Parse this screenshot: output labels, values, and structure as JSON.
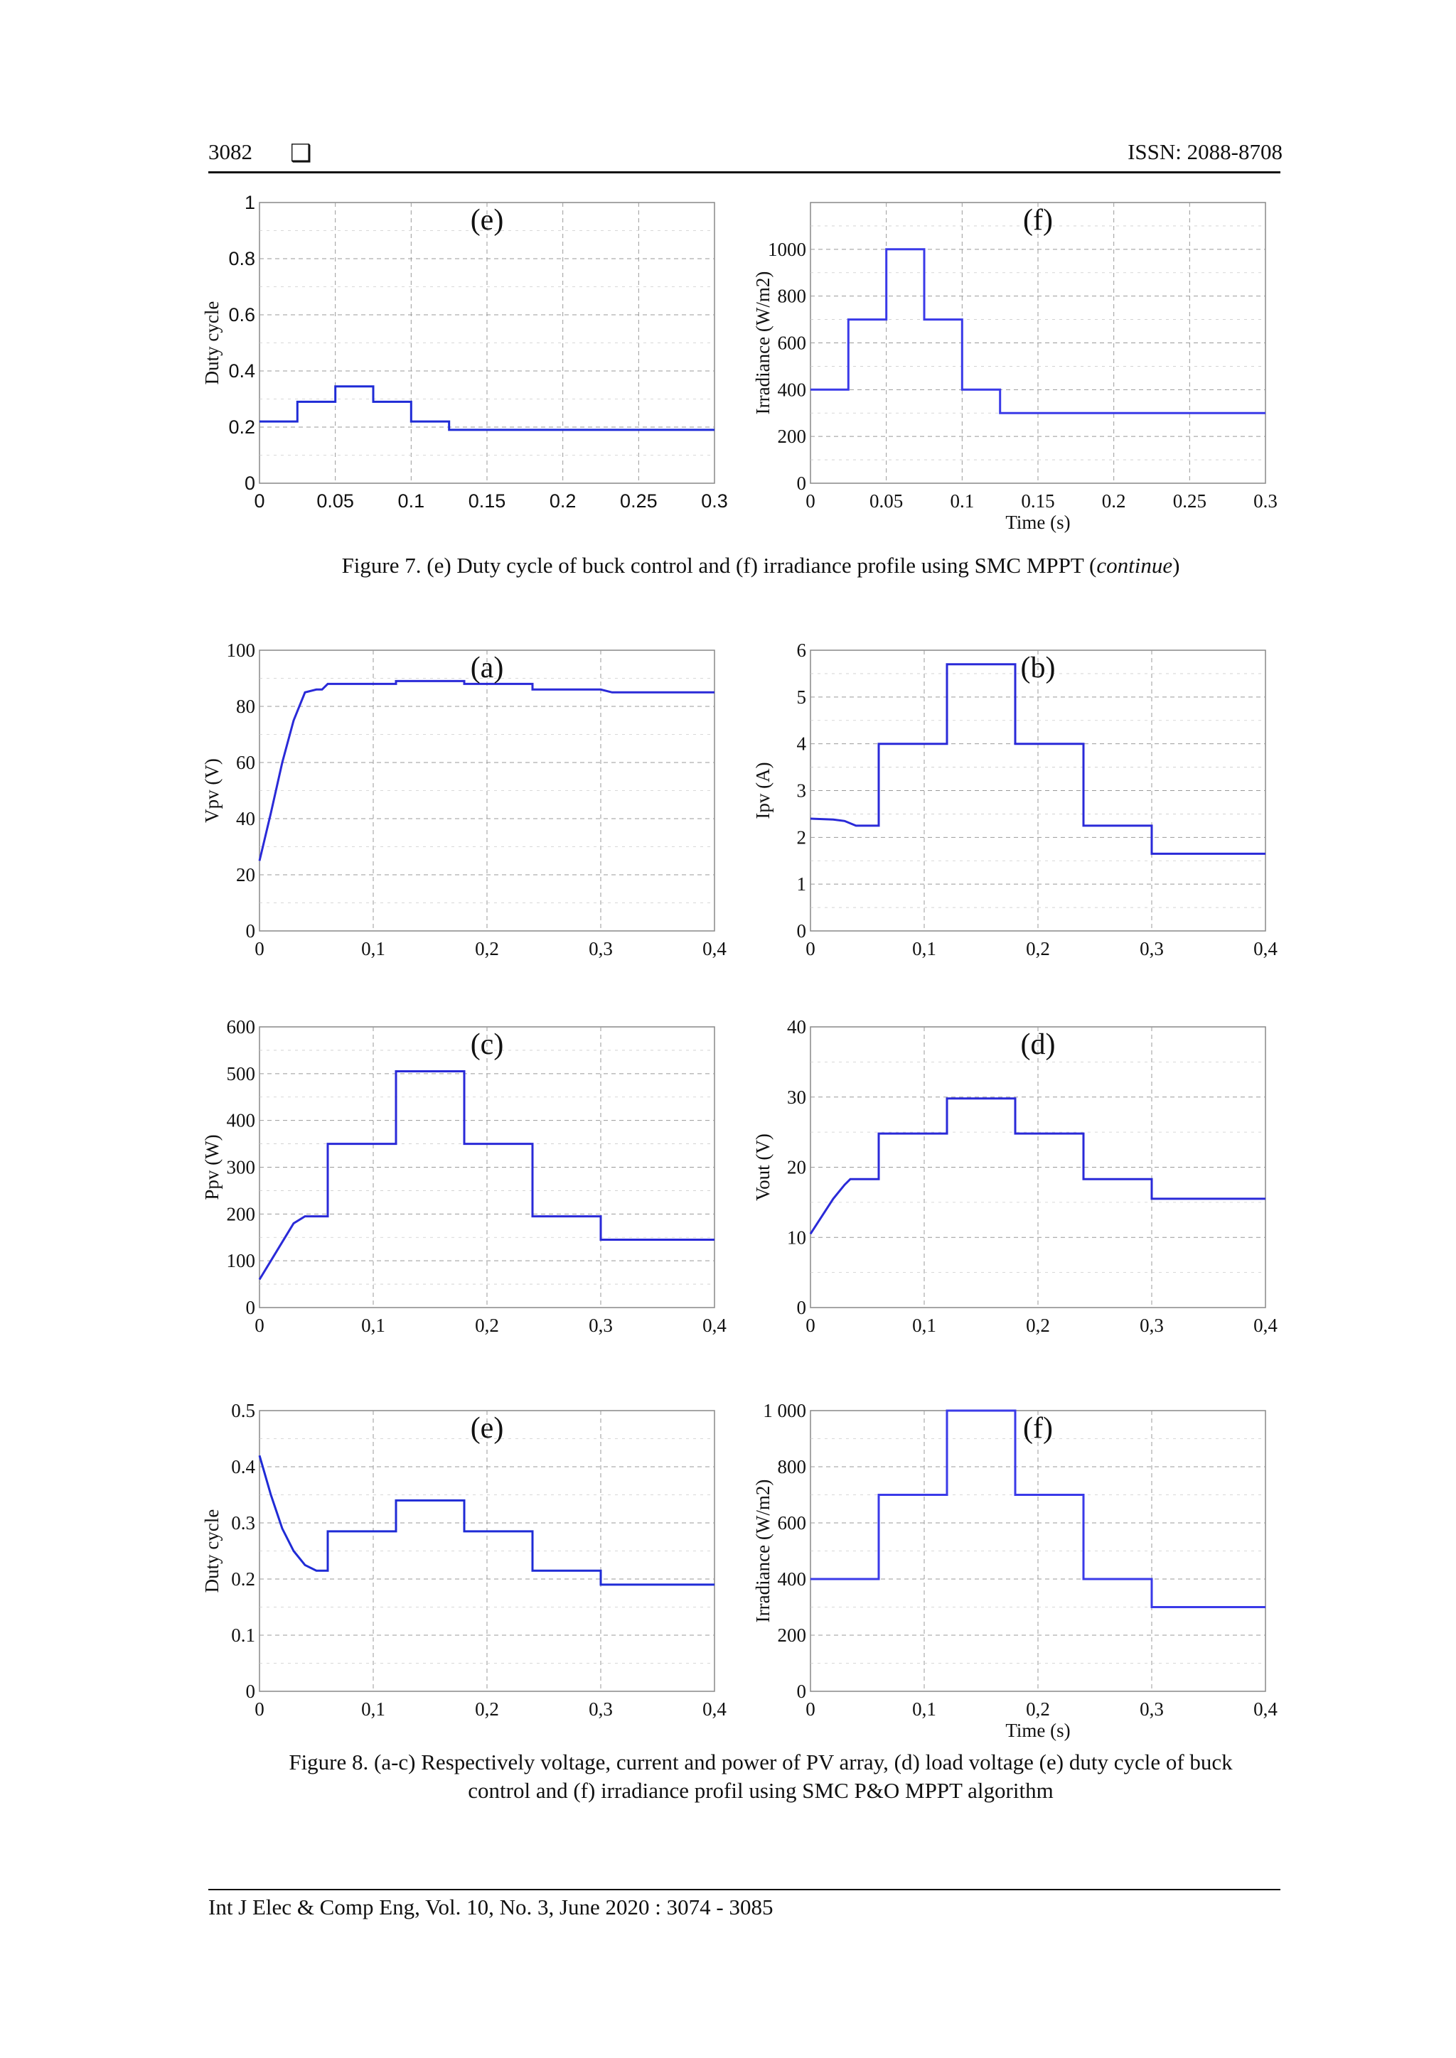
{
  "header": {
    "page_number": "3082",
    "icon": "square-bullet-icon",
    "issn": "ISSN: 2088-8708"
  },
  "captions": {
    "fig7": "Figure 7. (e) Duty cycle of buck control and (f) irradiance profile using SMC MPPT (",
    "fig7_italic": "continue",
    "fig7_end": ")",
    "fig8_line1": "Figure 8. (a-c) Respectively voltage, current and  power of PV array, (d) load voltage (e) duty cycle of buck",
    "fig8_line2": "control and (f) irradiance profil using SMC P&O MPPT algorithm"
  },
  "footer": {
    "text": "Int J Elec & Comp Eng, Vol. 10, No. 3, June 2020 :  3074 - 3085"
  },
  "chart_data": [
    {
      "id": "fig7e",
      "type": "line",
      "panel_label": "(e)",
      "title": "",
      "xlabel": "",
      "ylabel": "Duty cycle",
      "xlim": [
        0,
        0.3
      ],
      "ylim": [
        0,
        1
      ],
      "xticks": [
        "0",
        "0.05",
        "0.1",
        "0.15",
        "0.2",
        "0.25",
        "0.3"
      ],
      "yticks": [
        "0",
        "0.2",
        "0.4",
        "0.6",
        "0.8",
        "1"
      ],
      "series": [
        {
          "color": "#1f2bd6",
          "x": [
            0,
            0.025,
            0.025,
            0.05,
            0.05,
            0.075,
            0.075,
            0.1,
            0.1,
            0.125,
            0.125,
            0.3
          ],
          "y": [
            0.22,
            0.22,
            0.29,
            0.29,
            0.345,
            0.345,
            0.29,
            0.29,
            0.22,
            0.22,
            0.19,
            0.19
          ]
        }
      ]
    },
    {
      "id": "fig7f",
      "type": "line",
      "panel_label": "(f)",
      "title": "",
      "xlabel": "Time (s)",
      "ylabel": "Irradiance (W/m2)",
      "xlim": [
        0,
        0.3
      ],
      "ylim": [
        0,
        1200
      ],
      "xticks": [
        "0",
        "0.05",
        "0.1",
        "0.15",
        "0.2",
        "0.25",
        "0.3"
      ],
      "yticks": [
        "0",
        "200",
        "400",
        "600",
        "800",
        "1000",
        ""
      ],
      "series": [
        {
          "color": "#3a3ae8",
          "x": [
            0,
            0.025,
            0.025,
            0.05,
            0.05,
            0.075,
            0.075,
            0.1,
            0.1,
            0.125,
            0.125,
            0.3
          ],
          "y": [
            400,
            400,
            700,
            700,
            1000,
            1000,
            700,
            700,
            400,
            400,
            300,
            300
          ]
        }
      ]
    },
    {
      "id": "fig8a",
      "type": "line",
      "panel_label": "(a)",
      "title": "",
      "xlabel": "",
      "ylabel": "Vpv (V)",
      "xlim": [
        0,
        0.4
      ],
      "ylim": [
        0,
        100
      ],
      "xticks": [
        "0",
        "0,1",
        "0,2",
        "0,3",
        "0,4"
      ],
      "yticks": [
        "0",
        "20",
        "40",
        "60",
        "80",
        "100"
      ],
      "series": [
        {
          "color": "#2a2ad8",
          "x": [
            0,
            0.01,
            0.02,
            0.03,
            0.04,
            0.05,
            0.055,
            0.06,
            0.12,
            0.12,
            0.18,
            0.18,
            0.24,
            0.24,
            0.3,
            0.31,
            0.4
          ],
          "y": [
            25,
            42,
            60,
            75,
            85,
            86,
            86,
            88,
            88,
            89,
            89,
            88,
            88,
            86,
            86,
            85,
            85
          ]
        }
      ]
    },
    {
      "id": "fig8b",
      "type": "line",
      "panel_label": "(b)",
      "title": "",
      "xlabel": "",
      "ylabel": "Ipv (A)",
      "xlim": [
        0,
        0.4
      ],
      "ylim": [
        0,
        6
      ],
      "xticks": [
        "0",
        "0,1",
        "0,2",
        "0,3",
        "0,4"
      ],
      "yticks": [
        "0",
        "1",
        "2",
        "3",
        "4",
        "5",
        "6"
      ],
      "series": [
        {
          "color": "#2a2ad8",
          "x": [
            0,
            0.02,
            0.03,
            0.04,
            0.06,
            0.06,
            0.12,
            0.12,
            0.18,
            0.18,
            0.24,
            0.24,
            0.3,
            0.3,
            0.4
          ],
          "y": [
            2.4,
            2.38,
            2.35,
            2.25,
            2.25,
            4.0,
            4.0,
            5.7,
            5.7,
            4.0,
            4.0,
            2.25,
            2.25,
            1.65,
            1.65
          ]
        }
      ]
    },
    {
      "id": "fig8c",
      "type": "line",
      "panel_label": "(c)",
      "title": "",
      "xlabel": "",
      "ylabel": "Ppv (W)",
      "xlim": [
        0,
        0.4
      ],
      "ylim": [
        0,
        600
      ],
      "xticks": [
        "0",
        "0,1",
        "0,2",
        "0,3",
        "0,4"
      ],
      "yticks": [
        "0",
        "100",
        "200",
        "300",
        "400",
        "500",
        "600"
      ],
      "series": [
        {
          "color": "#2a2ad8",
          "x": [
            0,
            0.01,
            0.02,
            0.03,
            0.04,
            0.06,
            0.06,
            0.12,
            0.12,
            0.18,
            0.18,
            0.24,
            0.24,
            0.3,
            0.3,
            0.4
          ],
          "y": [
            60,
            100,
            140,
            180,
            195,
            195,
            350,
            350,
            505,
            505,
            350,
            350,
            195,
            195,
            145,
            145
          ]
        }
      ]
    },
    {
      "id": "fig8d",
      "type": "line",
      "panel_label": "(d)",
      "title": "",
      "xlabel": "",
      "ylabel": "Vout (V)",
      "xlim": [
        0,
        0.4
      ],
      "ylim": [
        0,
        40
      ],
      "xticks": [
        "0",
        "0,1",
        "0,2",
        "0,3",
        "0,4"
      ],
      "yticks": [
        "0",
        "10",
        "20",
        "30",
        "40"
      ],
      "series": [
        {
          "color": "#2a2ad8",
          "x": [
            0,
            0.01,
            0.02,
            0.03,
            0.035,
            0.06,
            0.06,
            0.12,
            0.12,
            0.18,
            0.18,
            0.24,
            0.24,
            0.3,
            0.3,
            0.4
          ],
          "y": [
            10.5,
            13,
            15.5,
            17.5,
            18.3,
            18.3,
            24.8,
            24.8,
            29.8,
            29.8,
            24.8,
            24.8,
            18.3,
            18.3,
            15.5,
            15.5
          ]
        }
      ]
    },
    {
      "id": "fig8e",
      "type": "line",
      "panel_label": "(e)",
      "title": "",
      "xlabel": "",
      "ylabel": "Duty cycle",
      "xlim": [
        0,
        0.4
      ],
      "ylim": [
        0,
        0.5
      ],
      "xticks": [
        "0",
        "0,1",
        "0,2",
        "0,3",
        "0,4"
      ],
      "yticks": [
        "0",
        "0.1",
        "0.2",
        "0.3",
        "0.4",
        "0.5"
      ],
      "series": [
        {
          "color": "#1f2bd6",
          "x": [
            0,
            0.01,
            0.02,
            0.03,
            0.04,
            0.05,
            0.06,
            0.06,
            0.12,
            0.12,
            0.18,
            0.18,
            0.24,
            0.24,
            0.3,
            0.3,
            0.4
          ],
          "y": [
            0.42,
            0.35,
            0.29,
            0.25,
            0.225,
            0.215,
            0.215,
            0.285,
            0.285,
            0.34,
            0.34,
            0.285,
            0.285,
            0.215,
            0.215,
            0.19,
            0.19
          ]
        }
      ]
    },
    {
      "id": "fig8f",
      "type": "line",
      "panel_label": "(f)",
      "title": "",
      "xlabel": "Time (s)",
      "ylabel": "Irradiance (W/m2)",
      "xlim": [
        0,
        0.4
      ],
      "ylim": [
        0,
        1000
      ],
      "xticks": [
        "0",
        "0,1",
        "0,2",
        "0,3",
        "0,4"
      ],
      "yticks": [
        "0",
        "200",
        "400",
        "600",
        "800",
        "1 000"
      ],
      "series": [
        {
          "color": "#3a3ae8",
          "x": [
            0,
            0.06,
            0.06,
            0.12,
            0.12,
            0.18,
            0.18,
            0.24,
            0.24,
            0.3,
            0.3,
            0.4
          ],
          "y": [
            400,
            400,
            700,
            700,
            1000,
            1000,
            700,
            700,
            400,
            400,
            300,
            300
          ]
        }
      ]
    }
  ]
}
